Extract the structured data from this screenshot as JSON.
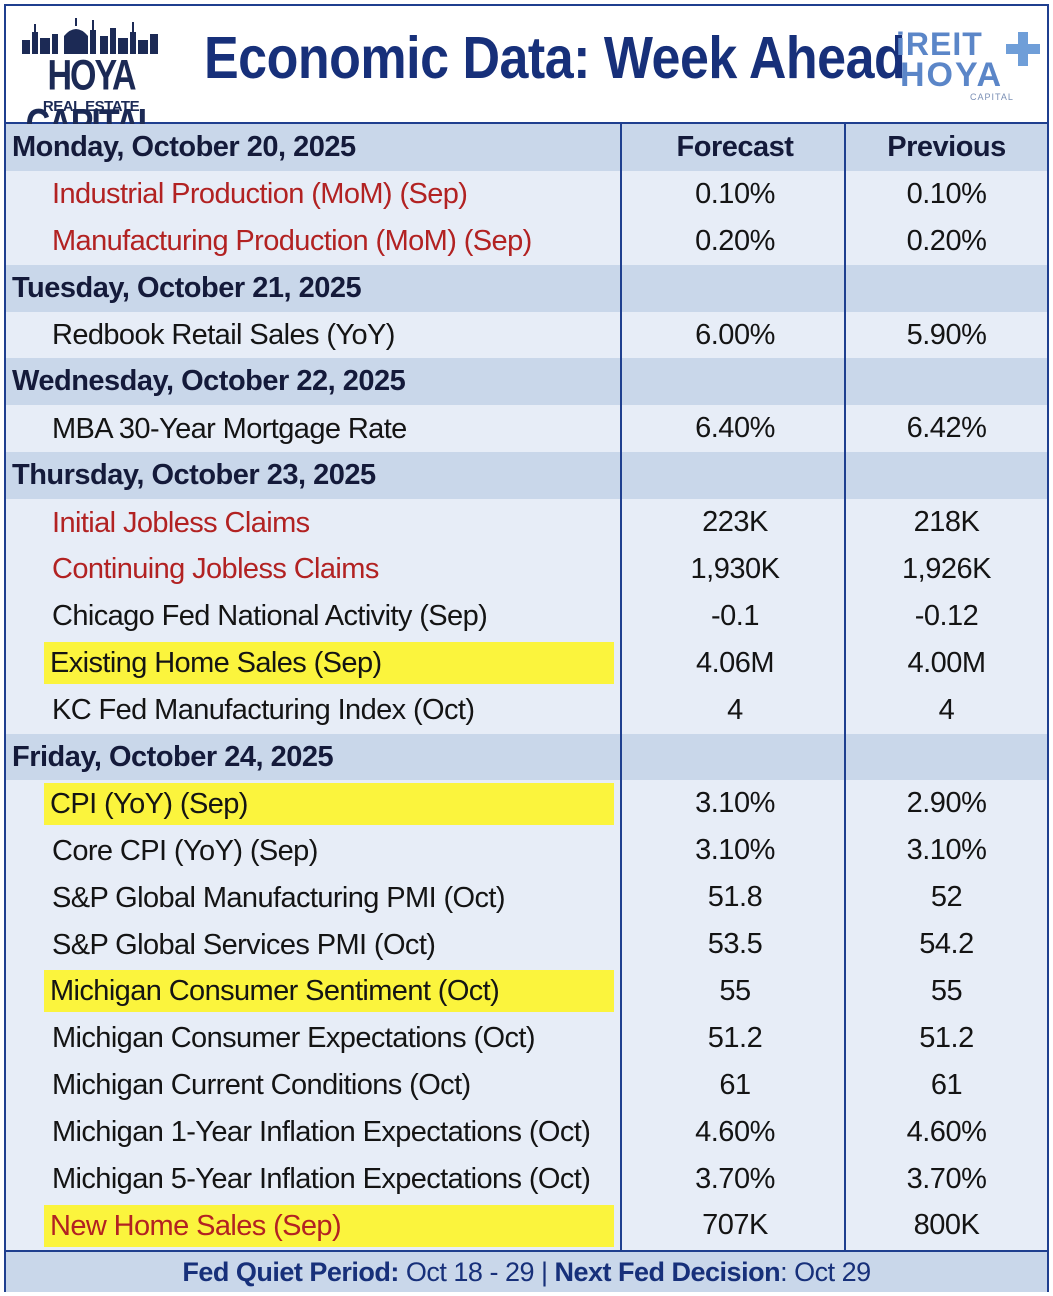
{
  "header": {
    "logo_left_title": "HOYA CAPITAL",
    "logo_left_sub": "REAL ESTATE",
    "title": "Economic Data: Week Ahead",
    "logo_right_top": "iREIT",
    "logo_right_mid": "HOYA",
    "logo_right_sub": "CAPITAL"
  },
  "columns": {
    "forecast": "Forecast",
    "previous": "Previous"
  },
  "days": [
    {
      "label": "Monday, October 20, 2025",
      "items": [
        {
          "name": "Industrial Production (MoM) (Sep)",
          "forecast": "0.10%",
          "previous": "0.10%",
          "style": "red"
        },
        {
          "name": "Manufacturing Production (MoM) (Sep)",
          "forecast": "0.20%",
          "previous": "0.20%",
          "style": "red"
        }
      ]
    },
    {
      "label": "Tuesday, October 21, 2025",
      "items": [
        {
          "name": "Redbook Retail Sales (YoY)",
          "forecast": "6.00%",
          "previous": "5.90%",
          "style": "normal"
        }
      ]
    },
    {
      "label": "Wednesday, October 22, 2025",
      "items": [
        {
          "name": "MBA 30-Year Mortgage Rate",
          "forecast": "6.40%",
          "previous": "6.42%",
          "style": "normal"
        }
      ]
    },
    {
      "label": "Thursday, October 23, 2025",
      "items": [
        {
          "name": "Initial Jobless Claims",
          "forecast": "223K",
          "previous": "218K",
          "style": "red"
        },
        {
          "name": "Continuing Jobless Claims",
          "forecast": "1,930K",
          "previous": "1,926K",
          "style": "red"
        },
        {
          "name": "Chicago Fed National Activity (Sep)",
          "forecast": "-0.1",
          "previous": "-0.12",
          "style": "normal"
        },
        {
          "name": "Existing Home Sales (Sep)",
          "forecast": "4.06M",
          "previous": "4.00M",
          "style": "highlight"
        },
        {
          "name": "KC Fed Manufacturing Index (Oct)",
          "forecast": "4",
          "previous": "4",
          "style": "normal"
        }
      ]
    },
    {
      "label": "Friday, October 24, 2025",
      "items": [
        {
          "name": "CPI (YoY) (Sep)",
          "forecast": "3.10%",
          "previous": "2.90%",
          "style": "highlight"
        },
        {
          "name": "Core CPI (YoY) (Sep)",
          "forecast": "3.10%",
          "previous": "3.10%",
          "style": "normal"
        },
        {
          "name": "S&P Global Manufacturing PMI (Oct)",
          "forecast": "51.8",
          "previous": "52",
          "style": "normal"
        },
        {
          "name": "S&P Global Services PMI (Oct)",
          "forecast": "53.5",
          "previous": "54.2",
          "style": "normal"
        },
        {
          "name": "Michigan Consumer Sentiment (Oct)",
          "forecast": "55",
          "previous": "55",
          "style": "highlight"
        },
        {
          "name": "Michigan Consumer Expectations (Oct)",
          "forecast": "51.2",
          "previous": "51.2",
          "style": "normal"
        },
        {
          "name": "Michigan Current Conditions (Oct)",
          "forecast": "61",
          "previous": "61",
          "style": "normal"
        },
        {
          "name": "Michigan 1-Year Inflation Expectations (Oct)",
          "forecast": "4.60%",
          "previous": "4.60%",
          "style": "normal"
        },
        {
          "name": "Michigan 5-Year Inflation Expectations (Oct)",
          "forecast": "3.70%",
          "previous": "3.70%",
          "style": "normal"
        },
        {
          "name": "New Home Sales (Sep)",
          "forecast": "707K",
          "previous": "800K",
          "style": "highlight-red"
        }
      ]
    }
  ],
  "footer": {
    "quiet_label": "Fed Quiet Period:",
    "quiet_value": " Oct 18 - 29 | ",
    "decision_label": "Next Fed Decision",
    "decision_value": ": Oct 29"
  },
  "colors": {
    "title_blue": "#17307a",
    "day_row_bg": "#c9d7ea",
    "item_row_bg": "#e7edf7",
    "highlight_yellow": "#fbf43d",
    "red_text": "#b22222"
  },
  "icons": [
    "city-skyline-icon",
    "plus-icon"
  ]
}
